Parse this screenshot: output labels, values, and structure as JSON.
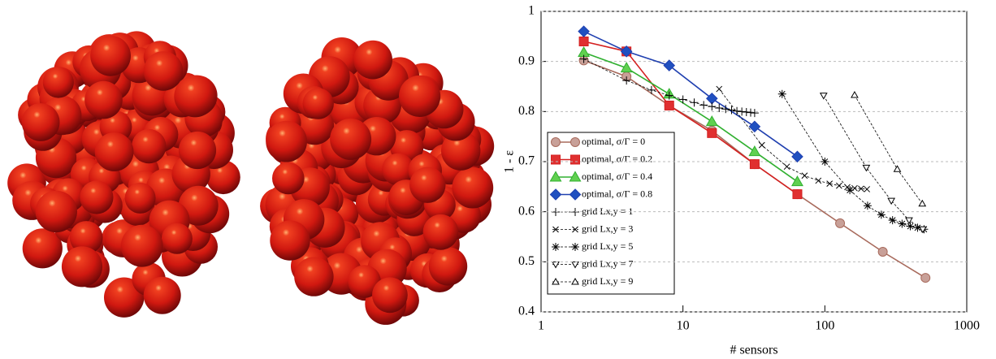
{
  "chart_data": {
    "type": "line",
    "x_label": "# sensors",
    "y_label": "1 - ε",
    "xscale": "log",
    "xlim": [
      1,
      1000
    ],
    "xticks": [
      1,
      10,
      100,
      1000
    ],
    "ylim": [
      0.4,
      1
    ],
    "yticks": [
      0.4,
      0.5,
      0.6,
      0.7,
      0.8,
      0.9,
      1
    ],
    "grid": true,
    "series": [
      {
        "name": "optimal, σ/Γ = 0",
        "color": "#a86a5c",
        "fill": "#c8a098",
        "marker": "circle",
        "dashed": false,
        "x": [
          2,
          4,
          8,
          16,
          32,
          64,
          128,
          256,
          512
        ],
        "values": [
          0.902,
          0.87,
          0.812,
          0.762,
          0.695,
          0.635,
          0.577,
          0.52,
          0.468
        ]
      },
      {
        "name": "optimal, σ/Γ = 0.2",
        "color": "#d42020",
        "fill": "#e03030",
        "marker": "square",
        "dashed": false,
        "x": [
          2,
          4,
          8,
          16,
          32,
          64
        ],
        "values": [
          0.94,
          0.92,
          0.812,
          0.757,
          0.695,
          0.635
        ]
      },
      {
        "name": "optimal, σ/Γ = 0.4",
        "color": "#30b030",
        "fill": "#60d050",
        "marker": "triangle",
        "dashed": false,
        "x": [
          2,
          4,
          8,
          16,
          32,
          64
        ],
        "values": [
          0.918,
          0.887,
          0.835,
          0.78,
          0.72,
          0.66
        ]
      },
      {
        "name": "optimal, σ/Γ = 0.8",
        "color": "#2040b0",
        "fill": "#2050c0",
        "marker": "diamond",
        "dashed": false,
        "x": [
          2,
          4,
          8,
          16,
          32,
          64
        ],
        "values": [
          0.96,
          0.92,
          0.892,
          0.826,
          0.77,
          0.71
        ]
      },
      {
        "name": "grid Lx,y = 1",
        "color": "#000000",
        "fill": "none",
        "marker": "plus",
        "dashed": true,
        "x": [
          2,
          4,
          6,
          8,
          10,
          12,
          14,
          16,
          18,
          20,
          22,
          24,
          26,
          28,
          30,
          32
        ],
        "values": [
          0.905,
          0.862,
          0.843,
          0.832,
          0.824,
          0.818,
          0.813,
          0.81,
          0.807,
          0.805,
          0.803,
          0.801,
          0.8,
          0.799,
          0.798,
          0.797
        ]
      },
      {
        "name": "grid Lx,y = 3",
        "color": "#000000",
        "fill": "none",
        "marker": "cross",
        "dashed": true,
        "x": [
          18,
          36,
          54,
          72,
          90,
          108,
          126,
          144,
          162,
          180,
          198
        ],
        "values": [
          0.845,
          0.733,
          0.69,
          0.672,
          0.662,
          0.656,
          0.652,
          0.649,
          0.647,
          0.646,
          0.645
        ]
      },
      {
        "name": "grid Lx,y = 5",
        "color": "#000000",
        "fill": "none",
        "marker": "star",
        "dashed": true,
        "x": [
          50,
          100,
          150,
          200,
          250,
          300,
          350,
          400,
          450,
          500
        ],
        "values": [
          0.835,
          0.7,
          0.643,
          0.612,
          0.594,
          0.583,
          0.576,
          0.571,
          0.568,
          0.565
        ]
      },
      {
        "name": "grid Lx,y = 7",
        "color": "#000000",
        "fill": "#ffffff",
        "marker": "tridown",
        "dashed": true,
        "x": [
          98,
          196,
          294,
          392,
          490
        ],
        "values": [
          0.832,
          0.688,
          0.622,
          0.583,
          0.565
        ]
      },
      {
        "name": "grid Lx,y = 9",
        "color": "#000000",
        "fill": "#ffffff",
        "marker": "triup",
        "dashed": true,
        "x": [
          162,
          324,
          486
        ],
        "values": [
          0.833,
          0.685,
          0.616
        ]
      }
    ]
  }
}
